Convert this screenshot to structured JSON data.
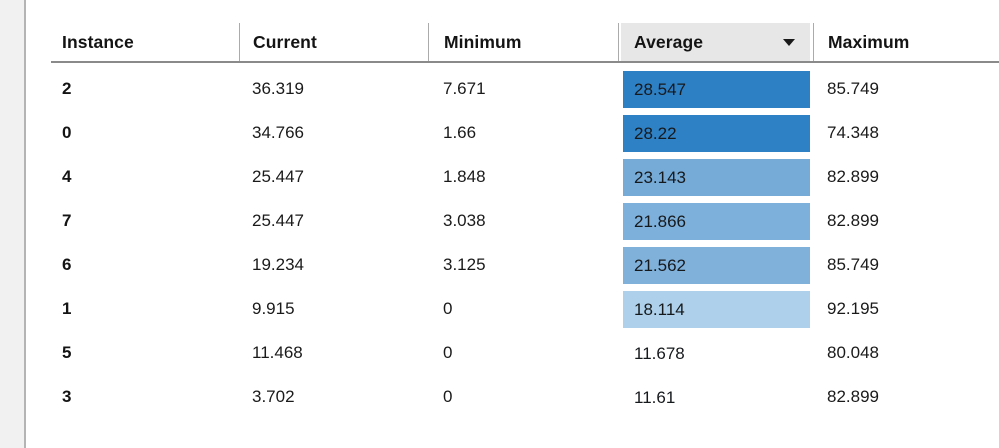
{
  "table": {
    "columns": [
      {
        "id": "instance",
        "label": "Instance"
      },
      {
        "id": "current",
        "label": "Current"
      },
      {
        "id": "minimum",
        "label": "Minimum"
      },
      {
        "id": "average",
        "label": "Average",
        "sorted": true,
        "sort_icon": "caret-down"
      },
      {
        "id": "maximum",
        "label": "Maximum"
      }
    ],
    "sort": {
      "column": "Average",
      "direction": "descending"
    },
    "rows": [
      {
        "instance": "2",
        "current": "36.319",
        "minimum": "7.671",
        "average": "28.547",
        "maximum": "85.749",
        "average_fill": "#2e80c5"
      },
      {
        "instance": "0",
        "current": "34.766",
        "minimum": "1.66",
        "average": "28.22",
        "maximum": "74.348",
        "average_fill": "#2f81c5"
      },
      {
        "instance": "4",
        "current": "25.447",
        "minimum": "1.848",
        "average": "23.143",
        "maximum": "82.899",
        "average_fill": "#76abd8"
      },
      {
        "instance": "7",
        "current": "25.447",
        "minimum": "3.038",
        "average": "21.866",
        "maximum": "82.899",
        "average_fill": "#7db0da"
      },
      {
        "instance": "6",
        "current": "19.234",
        "minimum": "3.125",
        "average": "21.562",
        "maximum": "85.749",
        "average_fill": "#7fb1db"
      },
      {
        "instance": "1",
        "current": "9.915",
        "minimum": "0",
        "average": "18.114",
        "maximum": "92.195",
        "average_fill": "#aed0ea"
      },
      {
        "instance": "5",
        "current": "11.468",
        "minimum": "0",
        "average": "11.678",
        "maximum": "80.048",
        "average_fill": "transparent"
      },
      {
        "instance": "3",
        "current": "3.702",
        "minimum": "0",
        "average": "11.61",
        "maximum": "82.899",
        "average_fill": "transparent"
      }
    ],
    "colors": {
      "sorted_header_bg": "#e7e7e7",
      "header_underline": "#8a8a8a",
      "column_divider": "#ababab",
      "gutter_bg": "#f1f1f1",
      "gutter_border": "#b4b4b4",
      "heat_dark_blue": "#2e80c5",
      "heat_light_blue": "#aed0ea",
      "text": "#1a1a1a"
    }
  }
}
